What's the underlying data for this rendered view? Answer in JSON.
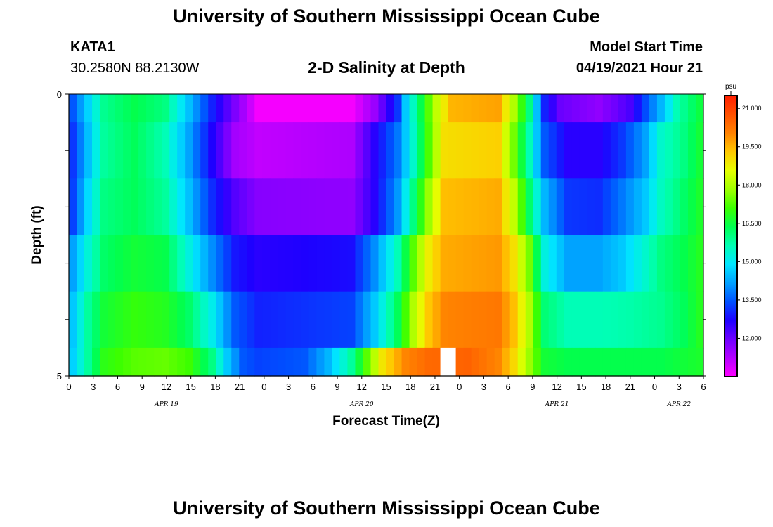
{
  "header": {
    "title_top": "University of Southern Mississippi Ocean Cube",
    "station": "KATA1",
    "coordinates": "30.2580N  88.2130W",
    "subtitle": "2-D Salinity at Depth",
    "model_start_label": "Model Start Time",
    "model_start_value": "04/19/2021 Hour 21",
    "title_bottom": "University of Southern Mississippi Ocean Cube"
  },
  "chart_data": {
    "type": "heatmap",
    "title": "2-D Salinity at Depth",
    "xlabel": "Forecast Time(Z)",
    "ylabel": "Depth (ft)",
    "ylim": [
      0,
      5
    ],
    "y_tick_labels": [
      "0",
      "5"
    ],
    "x_start": "04/19/2021 00Z",
    "x_end": "04/22/2021 06Z",
    "x_tick_labels": [
      "0",
      "3",
      "6",
      "9",
      "12",
      "15",
      "18",
      "21",
      "0",
      "3",
      "6",
      "9",
      "12",
      "15",
      "18",
      "21",
      "0",
      "3",
      "6",
      "9",
      "12",
      "15",
      "18",
      "21",
      "0",
      "3",
      "6"
    ],
    "date_labels": [
      {
        "text": "APR 19",
        "hour": 12
      },
      {
        "text": "APR 20",
        "hour": 12
      },
      {
        "text": "APR 21",
        "hour": 12
      },
      {
        "text": "APR 22",
        "hour": 3
      }
    ],
    "colorbar": {
      "unit": "psu",
      "min": 10.5,
      "max": 21.5,
      "tick_labels": [
        "21.000",
        "19.500",
        "18.000",
        "16.500",
        "15.000",
        "13.500",
        "12.000"
      ],
      "tick_values": [
        21.0,
        19.5,
        18.0,
        16.5,
        15.0,
        13.5,
        12.0
      ],
      "colors": [
        "#ff00ff",
        "#b400ff",
        "#6e00ff",
        "#1e00ff",
        "#0050ff",
        "#00a0ff",
        "#00e6ff",
        "#00ffb4",
        "#00ff50",
        "#3cff00",
        "#a0ff00",
        "#e6ff00",
        "#ffc800",
        "#ff8200",
        "#ff5000",
        "#ff1e00"
      ]
    },
    "depth_layers": [
      {
        "depth_range": [
          0.0,
          0.5
        ],
        "keyframes": [
          [
            0,
            13.5
          ],
          [
            2,
            14.7
          ],
          [
            4,
            15.9
          ],
          [
            8,
            16.4
          ],
          [
            12,
            16.0
          ],
          [
            15,
            14.5
          ],
          [
            18,
            13.0
          ],
          [
            21,
            11.8
          ],
          [
            24,
            10.6
          ],
          [
            36,
            10.6
          ],
          [
            39,
            11.5
          ],
          [
            42,
            13.2
          ],
          [
            43,
            14.6
          ],
          [
            45,
            16.4
          ],
          [
            47,
            18.2
          ],
          [
            49,
            19.5
          ],
          [
            55,
            19.7
          ],
          [
            57,
            18.0
          ],
          [
            59,
            16.0
          ],
          [
            61,
            13.0
          ],
          [
            63,
            12.0
          ],
          [
            68,
            11.6
          ],
          [
            72,
            12.3
          ],
          [
            74,
            13.4
          ],
          [
            76,
            14.4
          ],
          [
            78,
            15.6
          ],
          [
            81,
            16.5
          ]
        ]
      },
      {
        "depth_range": [
          0.5,
          1.5
        ],
        "keyframes": [
          [
            0,
            13.2
          ],
          [
            2,
            14.5
          ],
          [
            4,
            15.8
          ],
          [
            8,
            16.3
          ],
          [
            12,
            15.6
          ],
          [
            15,
            14.2
          ],
          [
            18,
            12.7
          ],
          [
            21,
            11.4
          ],
          [
            24,
            11.1
          ],
          [
            36,
            11.3
          ],
          [
            39,
            12.6
          ],
          [
            42,
            13.8
          ],
          [
            44,
            15.4
          ],
          [
            46,
            17.2
          ],
          [
            48,
            19.0
          ],
          [
            55,
            19.2
          ],
          [
            57,
            17.5
          ],
          [
            59,
            15.6
          ],
          [
            61,
            13.5
          ],
          [
            64,
            12.6
          ],
          [
            68,
            12.6
          ],
          [
            71,
            13.2
          ],
          [
            74,
            14.2
          ],
          [
            76,
            15.4
          ],
          [
            79,
            16.0
          ],
          [
            81,
            16.6
          ]
        ]
      },
      {
        "depth_range": [
          1.5,
          2.5
        ],
        "keyframes": [
          [
            0,
            13.3
          ],
          [
            2,
            14.8
          ],
          [
            4,
            16.0
          ],
          [
            8,
            16.3
          ],
          [
            12,
            15.8
          ],
          [
            15,
            14.5
          ],
          [
            18,
            13.1
          ],
          [
            21,
            12.2
          ],
          [
            24,
            11.7
          ],
          [
            36,
            11.6
          ],
          [
            39,
            12.6
          ],
          [
            42,
            14.1
          ],
          [
            44,
            16.0
          ],
          [
            46,
            17.8
          ],
          [
            48,
            19.4
          ],
          [
            55,
            19.6
          ],
          [
            57,
            18.2
          ],
          [
            59,
            16.2
          ],
          [
            61,
            14.4
          ],
          [
            64,
            13.2
          ],
          [
            68,
            13.1
          ],
          [
            71,
            13.8
          ],
          [
            74,
            14.6
          ],
          [
            76,
            15.5
          ],
          [
            79,
            16.2
          ],
          [
            81,
            16.7
          ]
        ]
      },
      {
        "depth_range": [
          2.5,
          3.5
        ],
        "keyframes": [
          [
            0,
            14.2
          ],
          [
            2,
            15.3
          ],
          [
            4,
            16.2
          ],
          [
            8,
            16.6
          ],
          [
            12,
            16.4
          ],
          [
            15,
            15.2
          ],
          [
            18,
            14.0
          ],
          [
            21,
            12.9
          ],
          [
            24,
            12.6
          ],
          [
            36,
            12.8
          ],
          [
            39,
            14.0
          ],
          [
            42,
            15.6
          ],
          [
            44,
            17.3
          ],
          [
            46,
            18.8
          ],
          [
            48,
            19.6
          ],
          [
            55,
            19.8
          ],
          [
            57,
            19.0
          ],
          [
            59,
            17.5
          ],
          [
            61,
            15.2
          ],
          [
            64,
            14.2
          ],
          [
            68,
            14.2
          ],
          [
            71,
            14.6
          ],
          [
            74,
            15.4
          ],
          [
            76,
            16.0
          ],
          [
            79,
            16.4
          ],
          [
            81,
            16.8
          ]
        ]
      },
      {
        "depth_range": [
          3.5,
          4.5
        ],
        "keyframes": [
          [
            0,
            14.6
          ],
          [
            2,
            15.8
          ],
          [
            4,
            16.6
          ],
          [
            8,
            17.0
          ],
          [
            12,
            16.8
          ],
          [
            15,
            16.2
          ],
          [
            18,
            15.1
          ],
          [
            21,
            13.5
          ],
          [
            24,
            13.0
          ],
          [
            36,
            13.3
          ],
          [
            39,
            14.6
          ],
          [
            42,
            16.3
          ],
          [
            44,
            18.0
          ],
          [
            46,
            19.3
          ],
          [
            48,
            20.0
          ],
          [
            55,
            20.2
          ],
          [
            57,
            19.4
          ],
          [
            59,
            18.0
          ],
          [
            61,
            16.1
          ],
          [
            64,
            15.6
          ],
          [
            68,
            15.6
          ],
          [
            72,
            15.7
          ],
          [
            76,
            15.9
          ],
          [
            79,
            16.3
          ],
          [
            81,
            16.8
          ]
        ]
      },
      {
        "depth_range": [
          4.5,
          5.0
        ],
        "keyframes": [
          [
            0,
            14.7
          ],
          [
            2,
            15.8
          ],
          [
            4,
            16.9
          ],
          [
            8,
            17.3
          ],
          [
            12,
            17.4
          ],
          [
            15,
            17.1
          ],
          [
            18,
            16.0
          ],
          [
            20,
            14.6
          ],
          [
            22,
            13.5
          ],
          [
            24,
            13.3
          ],
          [
            30,
            13.5
          ],
          [
            33,
            14.4
          ],
          [
            36,
            15.8
          ],
          [
            38,
            17.3
          ],
          [
            40,
            18.9
          ],
          [
            43,
            20.0
          ],
          [
            46,
            20.4
          ],
          [
            51,
            20.5
          ],
          [
            55,
            20.0
          ],
          [
            57,
            19.1
          ],
          [
            59,
            17.8
          ],
          [
            61,
            16.6
          ],
          [
            64,
            16.4
          ],
          [
            72,
            16.4
          ],
          [
            76,
            16.4
          ],
          [
            81,
            16.7
          ]
        ]
      }
    ],
    "missing_column_hours": [
      48,
      49
    ]
  }
}
